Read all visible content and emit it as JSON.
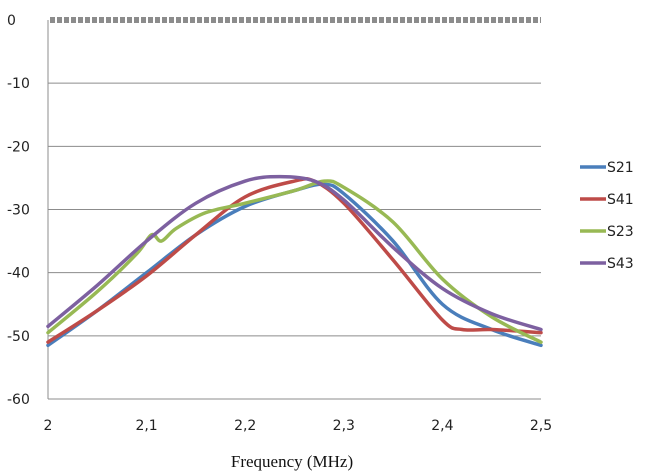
{
  "chart_data": {
    "type": "line",
    "title": "",
    "xlabel": "Frequency (MHz)",
    "ylabel": "",
    "xlim": [
      2.0,
      2.5
    ],
    "ylim": [
      -60,
      0
    ],
    "xticks": [
      2.0,
      2.1,
      2.2,
      2.3,
      2.4,
      2.5
    ],
    "xtick_labels": [
      "2",
      "2,1",
      "2,2",
      "2,3",
      "2,4",
      "2,5"
    ],
    "yticks": [
      0,
      -10,
      -20,
      -30,
      -40,
      -50,
      -60
    ],
    "ytick_labels": [
      "0",
      "-10",
      "-20",
      "-30",
      "-40",
      "-50",
      "-60"
    ],
    "grid": "horizontal",
    "legend_position": "right",
    "reference_line": {
      "y": 0,
      "color": "#8c8c8c",
      "style": "dashed"
    },
    "series": [
      {
        "name": "S21",
        "color": "#4a7ebb",
        "x": [
          2.0,
          2.05,
          2.1,
          2.15,
          2.2,
          2.25,
          2.28,
          2.3,
          2.35,
          2.4,
          2.45,
          2.5
        ],
        "y": [
          -51.5,
          -46,
          -40,
          -34,
          -29.5,
          -27,
          -26,
          -27.5,
          -35,
          -45,
          -49,
          -51.5
        ]
      },
      {
        "name": "S41",
        "color": "#be4b48",
        "x": [
          2.0,
          2.05,
          2.1,
          2.15,
          2.2,
          2.25,
          2.27,
          2.3,
          2.35,
          2.4,
          2.42,
          2.45,
          2.5
        ],
        "y": [
          -51,
          -46,
          -40.5,
          -34,
          -28,
          -25.5,
          -25.5,
          -29,
          -38,
          -47.5,
          -49,
          -49,
          -49.5
        ]
      },
      {
        "name": "S23",
        "color": "#98b954",
        "x": [
          2.0,
          2.05,
          2.09,
          2.105,
          2.115,
          2.13,
          2.16,
          2.2,
          2.25,
          2.28,
          2.3,
          2.35,
          2.4,
          2.45,
          2.5
        ],
        "y": [
          -49.5,
          -43,
          -37,
          -34,
          -35,
          -33,
          -30.5,
          -29,
          -27,
          -25.5,
          -26.5,
          -32,
          -41,
          -47,
          -51
        ]
      },
      {
        "name": "S43",
        "color": "#7d60a0",
        "x": [
          2.0,
          2.05,
          2.1,
          2.15,
          2.2,
          2.235,
          2.27,
          2.3,
          2.35,
          2.4,
          2.45,
          2.5
        ],
        "y": [
          -48.5,
          -42,
          -35,
          -29,
          -25.5,
          -24.8,
          -25.5,
          -28.5,
          -36,
          -42.5,
          -46.5,
          -49
        ]
      }
    ]
  }
}
